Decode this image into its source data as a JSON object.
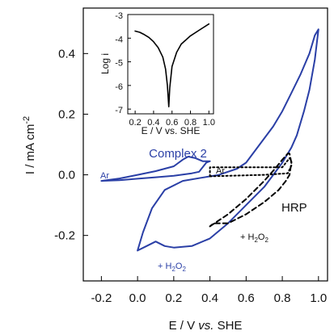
{
  "chart_data": [
    {
      "type": "line",
      "xlabel": "E / V vs. SHE",
      "ylabel": "I / mA cm-2",
      "xlim": [
        -0.3,
        1.05
      ],
      "ylim": [
        -0.35,
        0.55
      ],
      "xticks": [
        "-0.2",
        "0.0",
        "0.2",
        "0.4",
        "0.6",
        "0.8",
        "1.0"
      ],
      "yticks": [
        "-0.2",
        "0.0",
        "0.2",
        "0.4"
      ],
      "colors": {
        "blue": "#2a3fa6",
        "black": "#000000"
      },
      "annotations": {
        "complex": "Complex 2",
        "ar_left": "Ar",
        "ar_right": "Ar",
        "h2o2_bottom": "+ H2O2",
        "hrp": "HRP",
        "h2o2_dashed": "+ H2O2"
      },
      "series": [
        {
          "style": "solid-blue",
          "points": [
            [
              -0.2,
              -0.02
            ],
            [
              -0.1,
              -0.012
            ],
            [
              0.0,
              0.0
            ],
            [
              0.1,
              0.012
            ],
            [
              0.2,
              0.028
            ],
            [
              0.25,
              0.05
            ],
            [
              0.28,
              0.06
            ],
            [
              0.32,
              0.055
            ],
            [
              0.36,
              0.045
            ],
            [
              0.4,
              0.045
            ],
            [
              0.38,
              0.04
            ],
            [
              0.34,
              0.01
            ],
            [
              0.3,
              0.005
            ],
            [
              0.2,
              -0.003
            ],
            [
              0.1,
              -0.008
            ],
            [
              0.0,
              -0.013
            ],
            [
              -0.1,
              -0.018
            ],
            [
              -0.2,
              -0.02
            ]
          ]
        },
        {
          "style": "solid-blue",
          "points": [
            [
              0.0,
              -0.25
            ],
            [
              0.03,
              -0.19
            ],
            [
              0.08,
              -0.11
            ],
            [
              0.15,
              -0.05
            ],
            [
              0.25,
              -0.02
            ],
            [
              0.35,
              -0.01
            ],
            [
              0.45,
              0.0
            ],
            [
              0.55,
              0.02
            ],
            [
              0.6,
              0.04
            ],
            [
              0.65,
              0.08
            ],
            [
              0.7,
              0.12
            ],
            [
              0.75,
              0.16
            ],
            [
              0.8,
              0.21
            ],
            [
              0.85,
              0.27
            ],
            [
              0.9,
              0.33
            ],
            [
              0.95,
              0.4
            ],
            [
              0.98,
              0.46
            ],
            [
              1.0,
              0.48
            ],
            [
              0.98,
              0.38
            ],
            [
              0.95,
              0.28
            ],
            [
              0.92,
              0.21
            ],
            [
              0.88,
              0.13
            ],
            [
              0.85,
              0.09
            ],
            [
              0.8,
              0.04
            ],
            [
              0.75,
              0.0
            ],
            [
              0.7,
              -0.04
            ],
            [
              0.6,
              -0.1
            ],
            [
              0.5,
              -0.16
            ],
            [
              0.4,
              -0.21
            ],
            [
              0.3,
              -0.235
            ],
            [
              0.2,
              -0.24
            ],
            [
              0.15,
              -0.235
            ],
            [
              0.1,
              -0.22
            ],
            [
              0.05,
              -0.235
            ],
            [
              0.0,
              -0.25
            ]
          ]
        },
        {
          "style": "dashed-black",
          "points": [
            [
              0.4,
              -0.17
            ],
            [
              0.5,
              -0.13
            ],
            [
              0.6,
              -0.08
            ],
            [
              0.7,
              -0.02
            ],
            [
              0.76,
              0.02
            ],
            [
              0.8,
              0.05
            ],
            [
              0.83,
              0.07
            ],
            [
              0.84,
              0.07
            ],
            [
              0.85,
              0.04
            ],
            [
              0.84,
              0.0
            ],
            [
              0.82,
              -0.02
            ],
            [
              0.78,
              -0.05
            ],
            [
              0.7,
              -0.09
            ],
            [
              0.6,
              -0.13
            ],
            [
              0.5,
              -0.16
            ],
            [
              0.45,
              -0.16
            ],
            [
              0.42,
              -0.16
            ],
            [
              0.4,
              -0.17
            ]
          ]
        },
        {
          "style": "dotted-black",
          "points": [
            [
              0.4,
              -0.005
            ],
            [
              0.7,
              0.0
            ],
            [
              0.83,
              0.005
            ],
            [
              0.85,
              0.03
            ],
            [
              0.85,
              0.045
            ],
            [
              0.84,
              0.055
            ],
            [
              0.8,
              0.025
            ],
            [
              0.6,
              0.025
            ],
            [
              0.4,
              0.025
            ],
            [
              0.4,
              -0.005
            ]
          ]
        }
      ]
    },
    {
      "type": "line",
      "xlabel": "E / V vs. SHE",
      "ylabel": "Log i",
      "xlim": [
        0.12,
        1.05
      ],
      "ylim": [
        -7.2,
        -3
      ],
      "xticks": [
        "0.2",
        "0.4",
        "0.6",
        "0.8",
        "1.0"
      ],
      "yticks": [
        "-3",
        "-4",
        "-5",
        "-6",
        "-7"
      ],
      "series": [
        {
          "style": "solid-black",
          "points": [
            [
              0.2,
              -3.7
            ],
            [
              0.25,
              -3.75
            ],
            [
              0.3,
              -3.85
            ],
            [
              0.35,
              -3.97
            ],
            [
              0.4,
              -4.15
            ],
            [
              0.45,
              -4.4
            ],
            [
              0.5,
              -4.8
            ],
            [
              0.53,
              -5.3
            ],
            [
              0.55,
              -6.0
            ],
            [
              0.565,
              -6.9
            ],
            [
              0.575,
              -6.1
            ],
            [
              0.6,
              -5.2
            ],
            [
              0.65,
              -4.6
            ],
            [
              0.7,
              -4.25
            ],
            [
              0.8,
              -3.9
            ],
            [
              0.9,
              -3.65
            ],
            [
              1.0,
              -3.4
            ]
          ]
        }
      ]
    }
  ]
}
